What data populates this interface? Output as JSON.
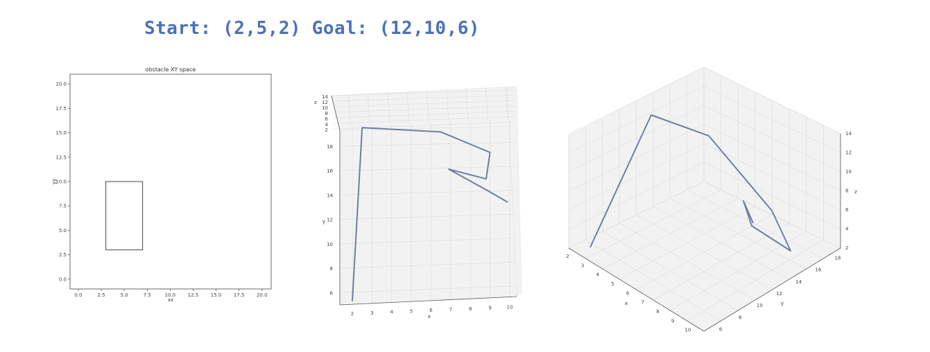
{
  "headline": {
    "start_text": "Start: (2,5,2)",
    "goal_text": "Goal: (12,10,6)",
    "color": "#4a72b8"
  },
  "chart_data": [
    {
      "type": "line",
      "title": "obstacle XY space",
      "xlabel": "xx",
      "ylabel": "yy",
      "xlim": [
        -0.9,
        21.0
      ],
      "ylim": [
        -1.0,
        21.0
      ],
      "xticks": [
        0.0,
        2.5,
        5.0,
        7.5,
        10.0,
        12.5,
        15.0,
        17.5,
        20.0
      ],
      "yticks": [
        0.0,
        2.5,
        5.0,
        7.5,
        10.0,
        12.5,
        15.0,
        17.5,
        20.0
      ],
      "xtick_labels": [
        "0.0",
        "2.5",
        "5.0",
        "7.5",
        "10.0",
        "12.5",
        "15.0",
        "17.5",
        "20.0"
      ],
      "ytick_labels": [
        "0.0",
        "2.5",
        "5.0",
        "7.5",
        "10.0",
        "12.5",
        "15.0",
        "17.5",
        "20.0"
      ],
      "obstacle": {
        "x": [
          3,
          7,
          7,
          3,
          3
        ],
        "y": [
          3,
          3,
          10,
          10,
          3
        ]
      },
      "grid": false
    },
    {
      "type": "line",
      "view": "3d-top",
      "xlabel": "x",
      "ylabel": "y",
      "zlabel": "z",
      "xticks": [
        2,
        3,
        4,
        5,
        6,
        7,
        8,
        9,
        10
      ],
      "yticks": [
        6,
        8,
        10,
        12,
        14,
        16,
        18
      ],
      "zticks": [
        2,
        4,
        6,
        8,
        10,
        12,
        14
      ],
      "series": [
        {
          "x": [
            2,
            2.5,
            6.5,
            9.0,
            8.8,
            6.9,
            8.9,
            9.9
          ],
          "y": [
            5.3,
            19.5,
            19.0,
            17.2,
            15.0,
            15.9,
            14.0,
            13.0
          ]
        }
      ],
      "grid": true
    },
    {
      "type": "line",
      "view": "3d-perspective",
      "xlabel": "x",
      "ylabel": "y",
      "zlabel": "z",
      "xticks": [
        2,
        3,
        4,
        5,
        6,
        7,
        8,
        9,
        10
      ],
      "yticks": [
        6,
        8,
        10,
        12,
        14,
        16,
        18
      ],
      "zticks": [
        2,
        4,
        6,
        8,
        10,
        12,
        14
      ],
      "grid": true
    }
  ],
  "colors": {
    "path": "#6c7f9e",
    "axis": "#555555",
    "pane": "#f2f2f2",
    "grid": "#dcdcdc"
  }
}
